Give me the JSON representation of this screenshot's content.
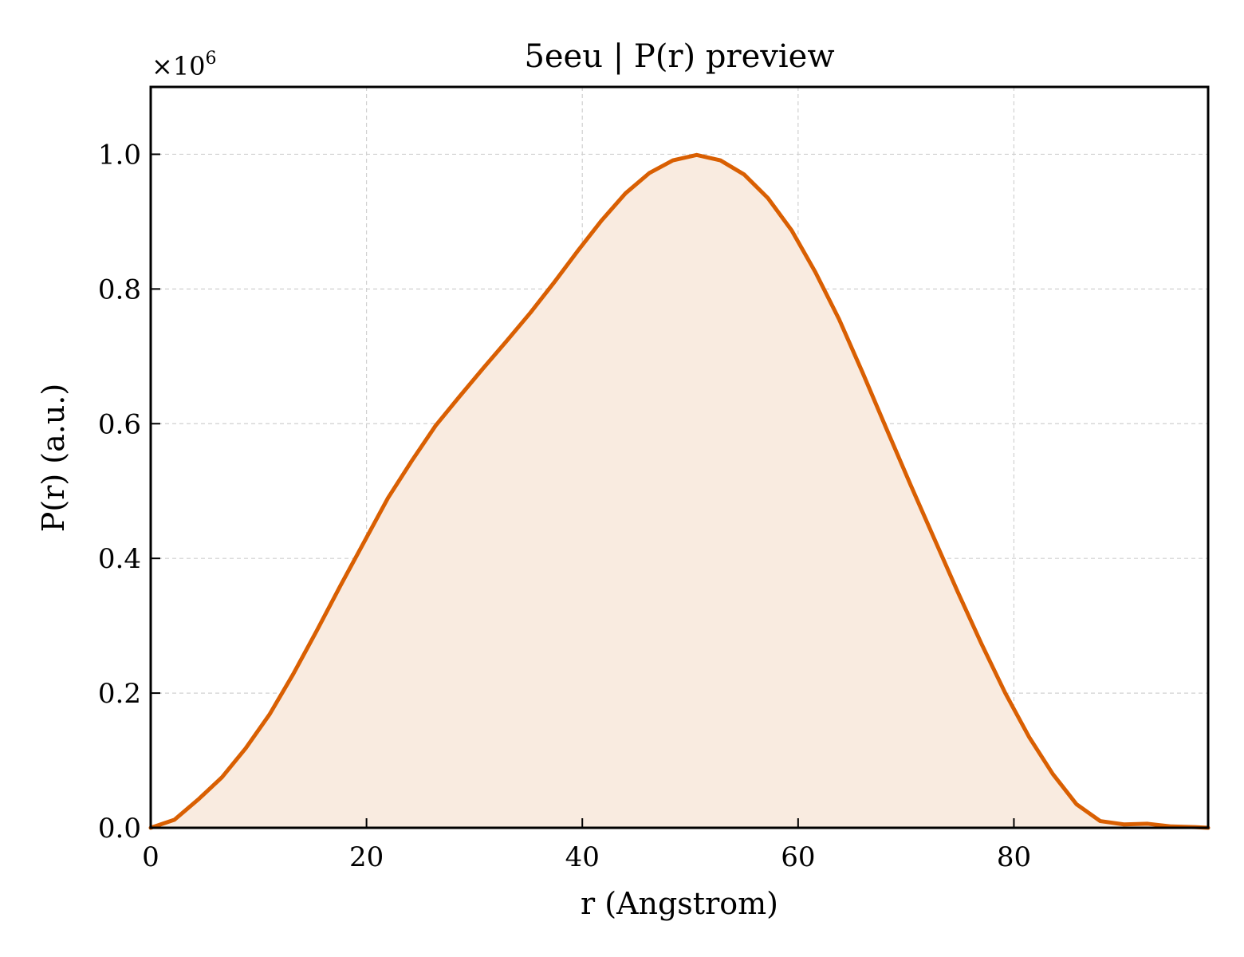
{
  "chart_data": {
    "type": "area",
    "title": "5eeu | P(r) preview",
    "xlabel": "r (Angstrom)",
    "ylabel": "P(r) (a.u.)",
    "y_multiplier": "×10",
    "y_multiplier_exp": "6",
    "xlim": [
      0,
      98
    ],
    "ylim": [
      0,
      1.1
    ],
    "xticks": [
      0,
      20,
      40,
      60,
      80
    ],
    "xtick_labels": [
      "0",
      "20",
      "40",
      "60",
      "80"
    ],
    "yticks": [
      0.0,
      0.2,
      0.4,
      0.6,
      0.8,
      1.0
    ],
    "ytick_labels": [
      "0.0",
      "0.2",
      "0.4",
      "0.6",
      "0.8",
      "1.0"
    ],
    "grid": true,
    "line_color": "#d95f02",
    "fill_color": "#f9ebe0",
    "series": [
      {
        "x": [
          0,
          2.2,
          4.4,
          6.6,
          8.8,
          11.0,
          13.2,
          15.4,
          17.6,
          19.8,
          22.0,
          24.2,
          26.4,
          28.6,
          30.8,
          33.0,
          35.2,
          37.4,
          39.6,
          41.8,
          44.0,
          46.2,
          48.4,
          50.6,
          52.8,
          55.0,
          57.2,
          59.4,
          61.6,
          63.8,
          66.0,
          68.2,
          70.4,
          72.6,
          74.8,
          77.0,
          79.2,
          81.4,
          83.6,
          85.8,
          88.0,
          90.2,
          92.4,
          94.6,
          96.8,
          98.0
        ],
        "values": [
          0.0,
          0.012,
          0.042,
          0.075,
          0.118,
          0.168,
          0.228,
          0.293,
          0.36,
          0.425,
          0.49,
          0.545,
          0.597,
          0.64,
          0.682,
          0.723,
          0.765,
          0.81,
          0.857,
          0.902,
          0.942,
          0.972,
          0.991,
          0.999,
          0.991,
          0.97,
          0.935,
          0.887,
          0.825,
          0.755,
          0.675,
          0.592,
          0.51,
          0.43,
          0.35,
          0.273,
          0.2,
          0.135,
          0.08,
          0.035,
          0.01,
          0.005,
          0.006,
          0.002,
          0.001,
          0.0
        ]
      }
    ]
  }
}
